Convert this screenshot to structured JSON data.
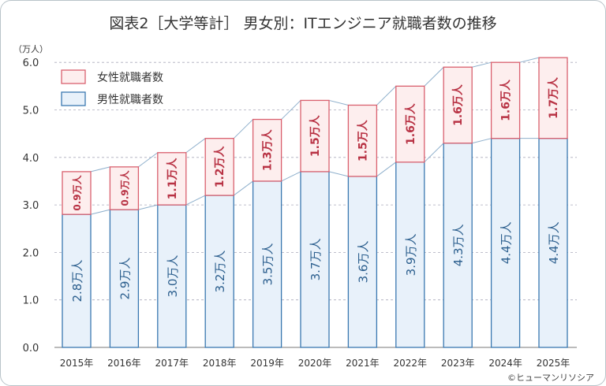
{
  "title": "図表2［大学等計］ 男女別：ITエンジニア就職者数の推移",
  "copyright": "©ヒューマンリソシア",
  "chart_data": {
    "type": "bar",
    "stacked": true,
    "title": "図表2［大学等計］ 男女別：ITエンジニア就職者数の推移",
    "ylabel": "（万人）",
    "ylim": [
      0,
      6
    ],
    "yticks": [
      "0.0",
      "1.0",
      "2.0",
      "3.0",
      "4.0",
      "5.0",
      "6.0"
    ],
    "grid": true,
    "legend_position": "top-left",
    "categories": [
      "2015年",
      "2016年",
      "2017年",
      "2018年",
      "2019年",
      "2020年",
      "2021年",
      "2022年",
      "2023年",
      "2024年",
      "2025年"
    ],
    "series": [
      {
        "name": "男性就職者数",
        "values": [
          2.8,
          2.9,
          3.0,
          3.2,
          3.5,
          3.7,
          3.6,
          3.9,
          4.3,
          4.4,
          4.4
        ],
        "labels": [
          "2.8万人",
          "2.9万人",
          "3.0万人",
          "3.2万人",
          "3.5万人",
          "3.7万人",
          "3.6万人",
          "3.9万人",
          "4.3万人",
          "4.4万人",
          "4.4万人"
        ],
        "fill": "#e8f1fa",
        "stroke": "#3a78b0",
        "text": "#2c5f8e"
      },
      {
        "name": "女性就職者数",
        "values": [
          0.9,
          0.9,
          1.1,
          1.2,
          1.3,
          1.5,
          1.5,
          1.6,
          1.6,
          1.6,
          1.7
        ],
        "labels": [
          "0.9万人",
          "0.9万人",
          "1.1万人",
          "1.2万人",
          "1.3万人",
          "1.5万人",
          "1.5万人",
          "1.6万人",
          "1.6万人",
          "1.6万人",
          "1.7万人"
        ],
        "fill": "#fdeeee",
        "stroke": "#d9606e",
        "text": "#b83244"
      }
    ]
  }
}
